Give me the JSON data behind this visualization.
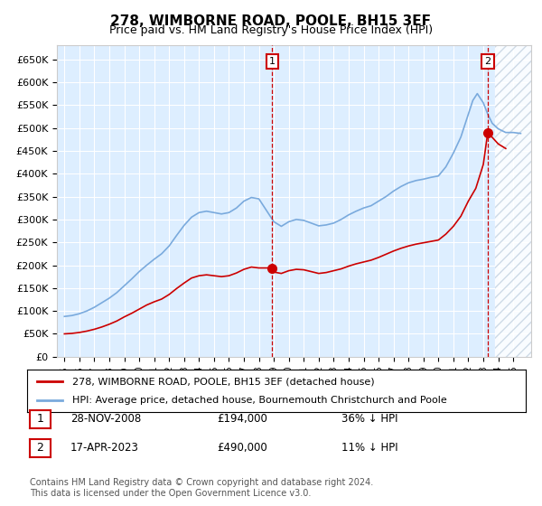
{
  "title": "278, WIMBORNE ROAD, POOLE, BH15 3EF",
  "subtitle": "Price paid vs. HM Land Registry's House Price Index (HPI)",
  "legend_line1": "278, WIMBORNE ROAD, POOLE, BH15 3EF (detached house)",
  "legend_line2": "HPI: Average price, detached house, Bournemouth Christchurch and Poole",
  "purchase1_date": "28-NOV-2008",
  "purchase1_price": "£194,000",
  "purchase1_hpi": "36% ↓ HPI",
  "purchase1_year": 2008.9,
  "purchase1_value": 194000,
  "purchase2_date": "17-APR-2023",
  "purchase2_price": "£490,000",
  "purchase2_hpi": "11% ↓ HPI",
  "purchase2_year": 2023.3,
  "purchase2_value": 490000,
  "red_color": "#cc0000",
  "blue_color": "#7aaadd",
  "background_color": "#ddeeff",
  "footer_text": "Contains HM Land Registry data © Crown copyright and database right 2024.\nThis data is licensed under the Open Government Licence v3.0.",
  "ylim": [
    0,
    680000
  ],
  "yticks": [
    0,
    50000,
    100000,
    150000,
    200000,
    250000,
    300000,
    350000,
    400000,
    450000,
    500000,
    550000,
    600000,
    650000
  ],
  "ytick_labels": [
    "£0",
    "£50K",
    "£100K",
    "£150K",
    "£200K",
    "£250K",
    "£300K",
    "£350K",
    "£400K",
    "£450K",
    "£500K",
    "£550K",
    "£600K",
    "£650K"
  ],
  "years_hpi": [
    1995,
    1995.5,
    1996,
    1996.5,
    1997,
    1997.5,
    1998,
    1998.5,
    1999,
    1999.5,
    2000,
    2000.5,
    2001,
    2001.5,
    2002,
    2002.5,
    2003,
    2003.5,
    2004,
    2004.5,
    2005,
    2005.5,
    2006,
    2006.5,
    2007,
    2007.5,
    2008,
    2008.5,
    2009,
    2009.5,
    2010,
    2010.5,
    2011,
    2011.5,
    2012,
    2012.5,
    2013,
    2013.5,
    2014,
    2014.5,
    2015,
    2015.5,
    2016,
    2016.5,
    2017,
    2017.5,
    2018,
    2018.5,
    2019,
    2019.5,
    2020,
    2020.5,
    2021,
    2021.5,
    2022,
    2022.3,
    2022.6,
    2023,
    2023.3,
    2023.6,
    2024,
    2024.5,
    2025,
    2025.5
  ],
  "vals_hpi": [
    88000,
    90000,
    94000,
    100000,
    108000,
    118000,
    128000,
    140000,
    155000,
    170000,
    186000,
    200000,
    213000,
    225000,
    242000,
    265000,
    287000,
    305000,
    315000,
    318000,
    315000,
    312000,
    315000,
    325000,
    340000,
    348000,
    345000,
    320000,
    295000,
    285000,
    295000,
    300000,
    298000,
    292000,
    286000,
    288000,
    292000,
    300000,
    310000,
    318000,
    325000,
    330000,
    340000,
    350000,
    362000,
    372000,
    380000,
    385000,
    388000,
    392000,
    395000,
    415000,
    445000,
    480000,
    530000,
    560000,
    575000,
    555000,
    530000,
    510000,
    498000,
    490000,
    490000,
    488000
  ],
  "years_red": [
    1995,
    1995.5,
    1996,
    1996.5,
    1997,
    1997.5,
    1998,
    1998.5,
    1999,
    1999.5,
    2000,
    2000.5,
    2001,
    2001.5,
    2002,
    2002.5,
    2003,
    2003.5,
    2004,
    2004.5,
    2005,
    2005.5,
    2006,
    2006.5,
    2007,
    2007.5,
    2008,
    2008.5,
    2008.9,
    2009,
    2009.5,
    2010,
    2010.5,
    2011,
    2011.5,
    2012,
    2012.5,
    2013,
    2013.5,
    2014,
    2014.5,
    2015,
    2015.5,
    2016,
    2016.5,
    2017,
    2017.5,
    2018,
    2018.5,
    2019,
    2019.5,
    2020,
    2020.5,
    2021,
    2021.5,
    2022,
    2022.5,
    2023,
    2023.3,
    2024,
    2024.5
  ],
  "vals_red": [
    50000,
    51000,
    53000,
    56000,
    60000,
    65000,
    71000,
    78000,
    87000,
    95000,
    104000,
    113000,
    120000,
    126000,
    136000,
    149000,
    161000,
    172000,
    177000,
    179000,
    177000,
    175000,
    177000,
    183000,
    191000,
    196000,
    194000,
    194000,
    194000,
    185000,
    182000,
    188000,
    191000,
    190000,
    186000,
    182000,
    184000,
    188000,
    192000,
    198000,
    203000,
    207000,
    211000,
    217000,
    224000,
    231000,
    237000,
    242000,
    246000,
    249000,
    252000,
    255000,
    268000,
    285000,
    307000,
    340000,
    368000,
    420000,
    490000,
    465000,
    455000
  ]
}
